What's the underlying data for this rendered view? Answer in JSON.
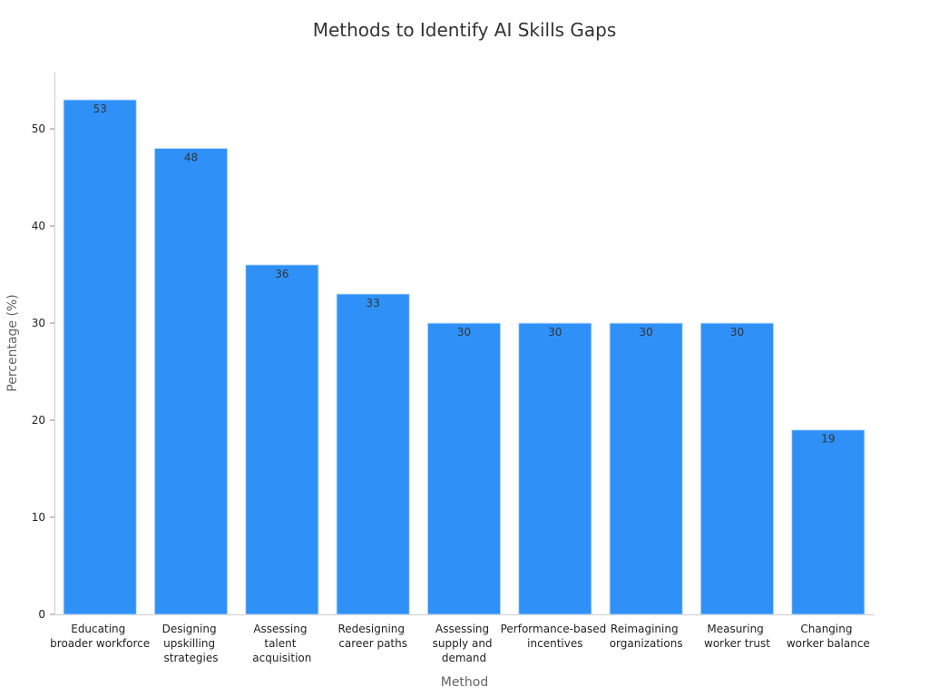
{
  "chart_data": {
    "type": "bar",
    "title": "Methods to Identify AI Skills Gaps",
    "x_label": "Method",
    "y_label": "Percentage (%)",
    "categories": [
      "Educating\nbroader workforce",
      "Designing\nupskilling\nstrategies",
      "Assessing\ntalent\nacquisition",
      "Redesigning\ncareer paths",
      "Assessing\nsupply and\ndemand",
      "Performance-based\nincentives",
      "Reimagining\norganizations",
      "Measuring\nworker trust",
      "Changing\nworker balance"
    ],
    "values": [
      53,
      48,
      36,
      33,
      30,
      30,
      30,
      30,
      19
    ],
    "color": "#2f91f8",
    "ylim": [
      0,
      55.8
    ],
    "yticks": [
      0,
      10,
      20,
      30,
      40,
      50
    ],
    "grid": false
  }
}
